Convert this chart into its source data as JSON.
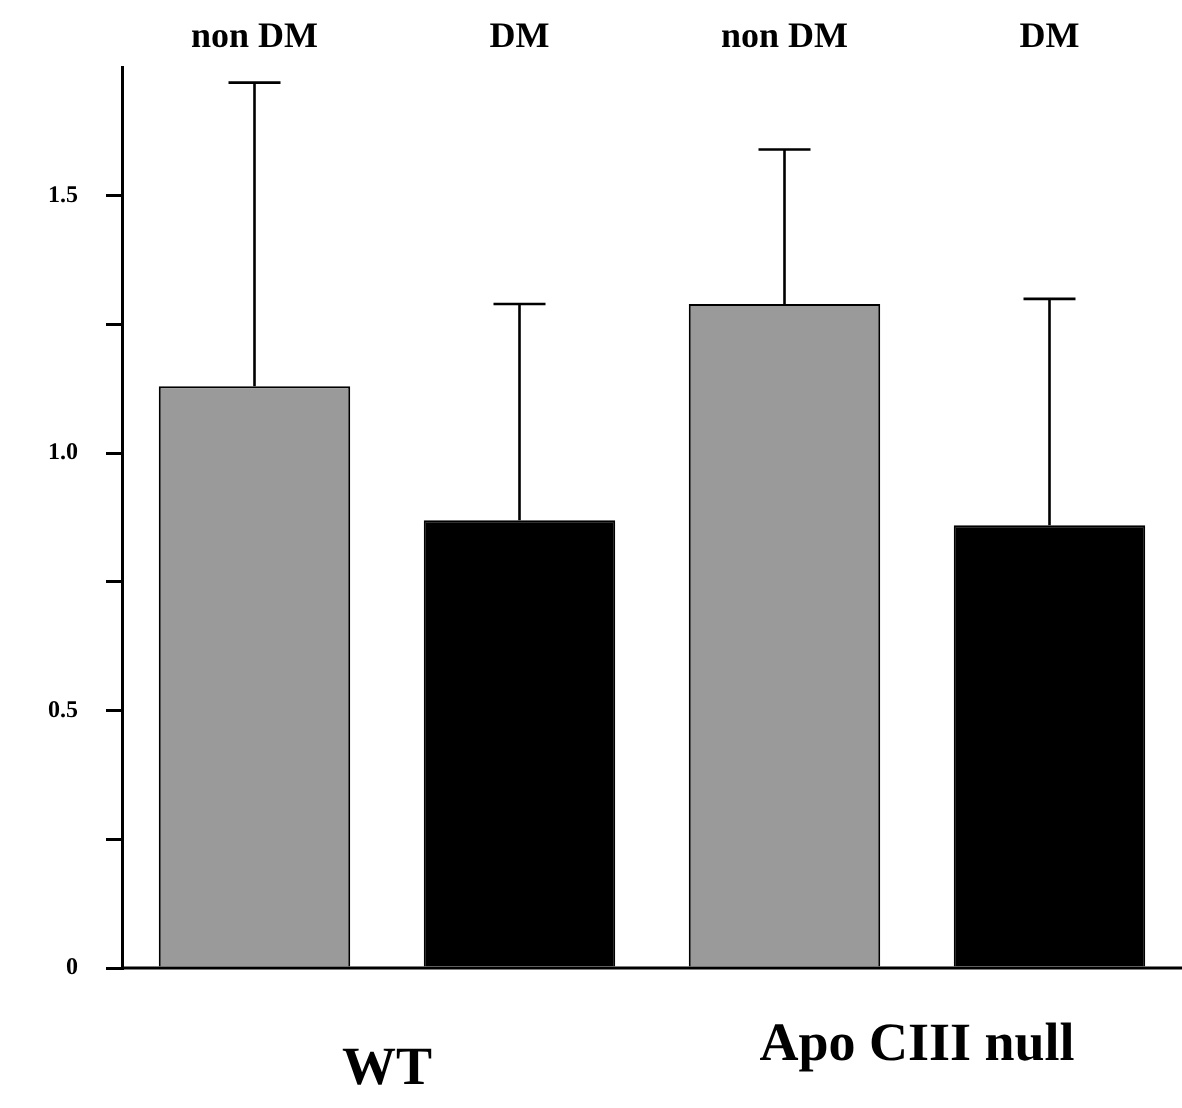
{
  "chart_data": {
    "type": "bar",
    "categories": [
      "non DM",
      "DM",
      "non DM",
      "DM"
    ],
    "values": [
      1.13,
      0.87,
      1.29,
      0.86
    ],
    "colors": [
      "#9a9a9a",
      "#000000",
      "#9a9a9a",
      "#000000"
    ],
    "errors": [
      [
        1.13,
        1.72
      ],
      [
        0.87,
        1.29
      ],
      [
        1.29,
        1.59
      ],
      [
        0.86,
        1.3
      ]
    ],
    "ylim": [
      0,
      1.75
    ],
    "yticks": [
      0,
      {
        "value": 0.25,
        "label": null
      },
      0.5,
      {
        "value": 0.75,
        "label": null
      },
      {
        "value": 1.0,
        "label": "1.0"
      },
      {
        "value": 1.25,
        "label": null
      },
      1.5
    ],
    "annotations": [
      "WT",
      "Apo CIII null"
    ],
    "grid": false,
    "legend": false
  }
}
